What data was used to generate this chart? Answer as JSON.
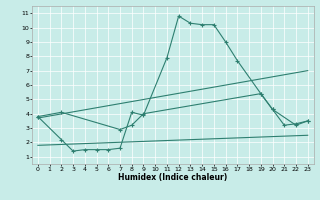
{
  "xlabel": "Humidex (Indice chaleur)",
  "background_color": "#c8ece8",
  "line_color": "#2e7f70",
  "xlim": [
    -0.5,
    23.5
  ],
  "ylim": [
    0.5,
    11.5
  ],
  "xticks": [
    0,
    1,
    2,
    3,
    4,
    5,
    6,
    7,
    8,
    9,
    10,
    11,
    12,
    13,
    14,
    15,
    16,
    17,
    18,
    19,
    20,
    21,
    22,
    23
  ],
  "yticks": [
    1,
    2,
    3,
    4,
    5,
    6,
    7,
    8,
    9,
    10,
    11
  ],
  "line1_x": [
    0,
    2,
    3,
    4,
    5,
    6,
    7,
    8,
    9,
    11,
    12,
    13,
    14,
    15,
    16,
    17,
    19,
    20,
    21,
    22,
    23
  ],
  "line1_y": [
    3.8,
    2.2,
    1.4,
    1.5,
    1.5,
    1.5,
    1.6,
    4.1,
    3.9,
    7.9,
    10.8,
    10.3,
    10.2,
    10.2,
    9.0,
    7.7,
    5.4,
    4.3,
    3.2,
    3.3,
    3.5
  ],
  "line2_x": [
    0,
    2,
    7,
    8,
    9,
    19,
    20,
    22,
    23
  ],
  "line2_y": [
    3.8,
    4.1,
    2.9,
    3.2,
    4.0,
    5.4,
    4.3,
    3.2,
    3.5
  ],
  "line3_x": [
    0,
    23
  ],
  "line3_y": [
    1.8,
    2.5
  ],
  "line4_x": [
    0,
    23
  ],
  "line4_y": [
    3.7,
    7.0
  ]
}
